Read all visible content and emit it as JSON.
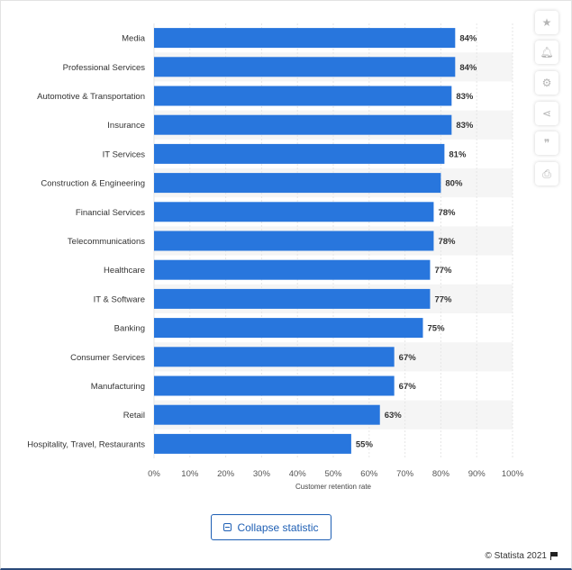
{
  "chart_data": {
    "type": "bar",
    "orientation": "horizontal",
    "categories": [
      "Media",
      "Professional Services",
      "Automotive & Transportation",
      "Insurance",
      "IT Services",
      "Construction & Engineering",
      "Financial Services",
      "Telecommunications",
      "Healthcare",
      "IT & Software",
      "Banking",
      "Consumer Services",
      "Manufacturing",
      "Retail",
      "Hospitality, Travel, Restaurants"
    ],
    "values": [
      84,
      84,
      83,
      83,
      81,
      80,
      78,
      78,
      77,
      77,
      75,
      67,
      67,
      63,
      55
    ],
    "value_labels": [
      "84%",
      "84%",
      "83%",
      "83%",
      "81%",
      "80%",
      "78%",
      "78%",
      "77%",
      "77%",
      "75%",
      "67%",
      "67%",
      "63%",
      "55%"
    ],
    "xlabel": "Customer retention rate",
    "ylabel": "",
    "xlim": [
      0,
      100
    ],
    "ticks": [
      "0%",
      "10%",
      "20%",
      "30%",
      "40%",
      "50%",
      "60%",
      "70%",
      "80%",
      "90%",
      "100%"
    ],
    "tick_values": [
      0,
      10,
      20,
      30,
      40,
      50,
      60,
      70,
      80,
      90,
      100
    ],
    "bar_color": "#2876dd",
    "grid": true
  },
  "sidebar": {
    "buttons": [
      {
        "name": "bookmark-star-icon",
        "glyph": "★"
      },
      {
        "name": "bell-icon",
        "glyph": "🔔︎"
      },
      {
        "name": "gear-icon",
        "glyph": "⚙"
      },
      {
        "name": "share-icon",
        "glyph": "⋖"
      },
      {
        "name": "quote-icon",
        "glyph": "❞"
      },
      {
        "name": "print-icon",
        "glyph": "⎙"
      }
    ]
  },
  "collapse_label": "Collapse statistic",
  "credit": "© Statista 2021"
}
